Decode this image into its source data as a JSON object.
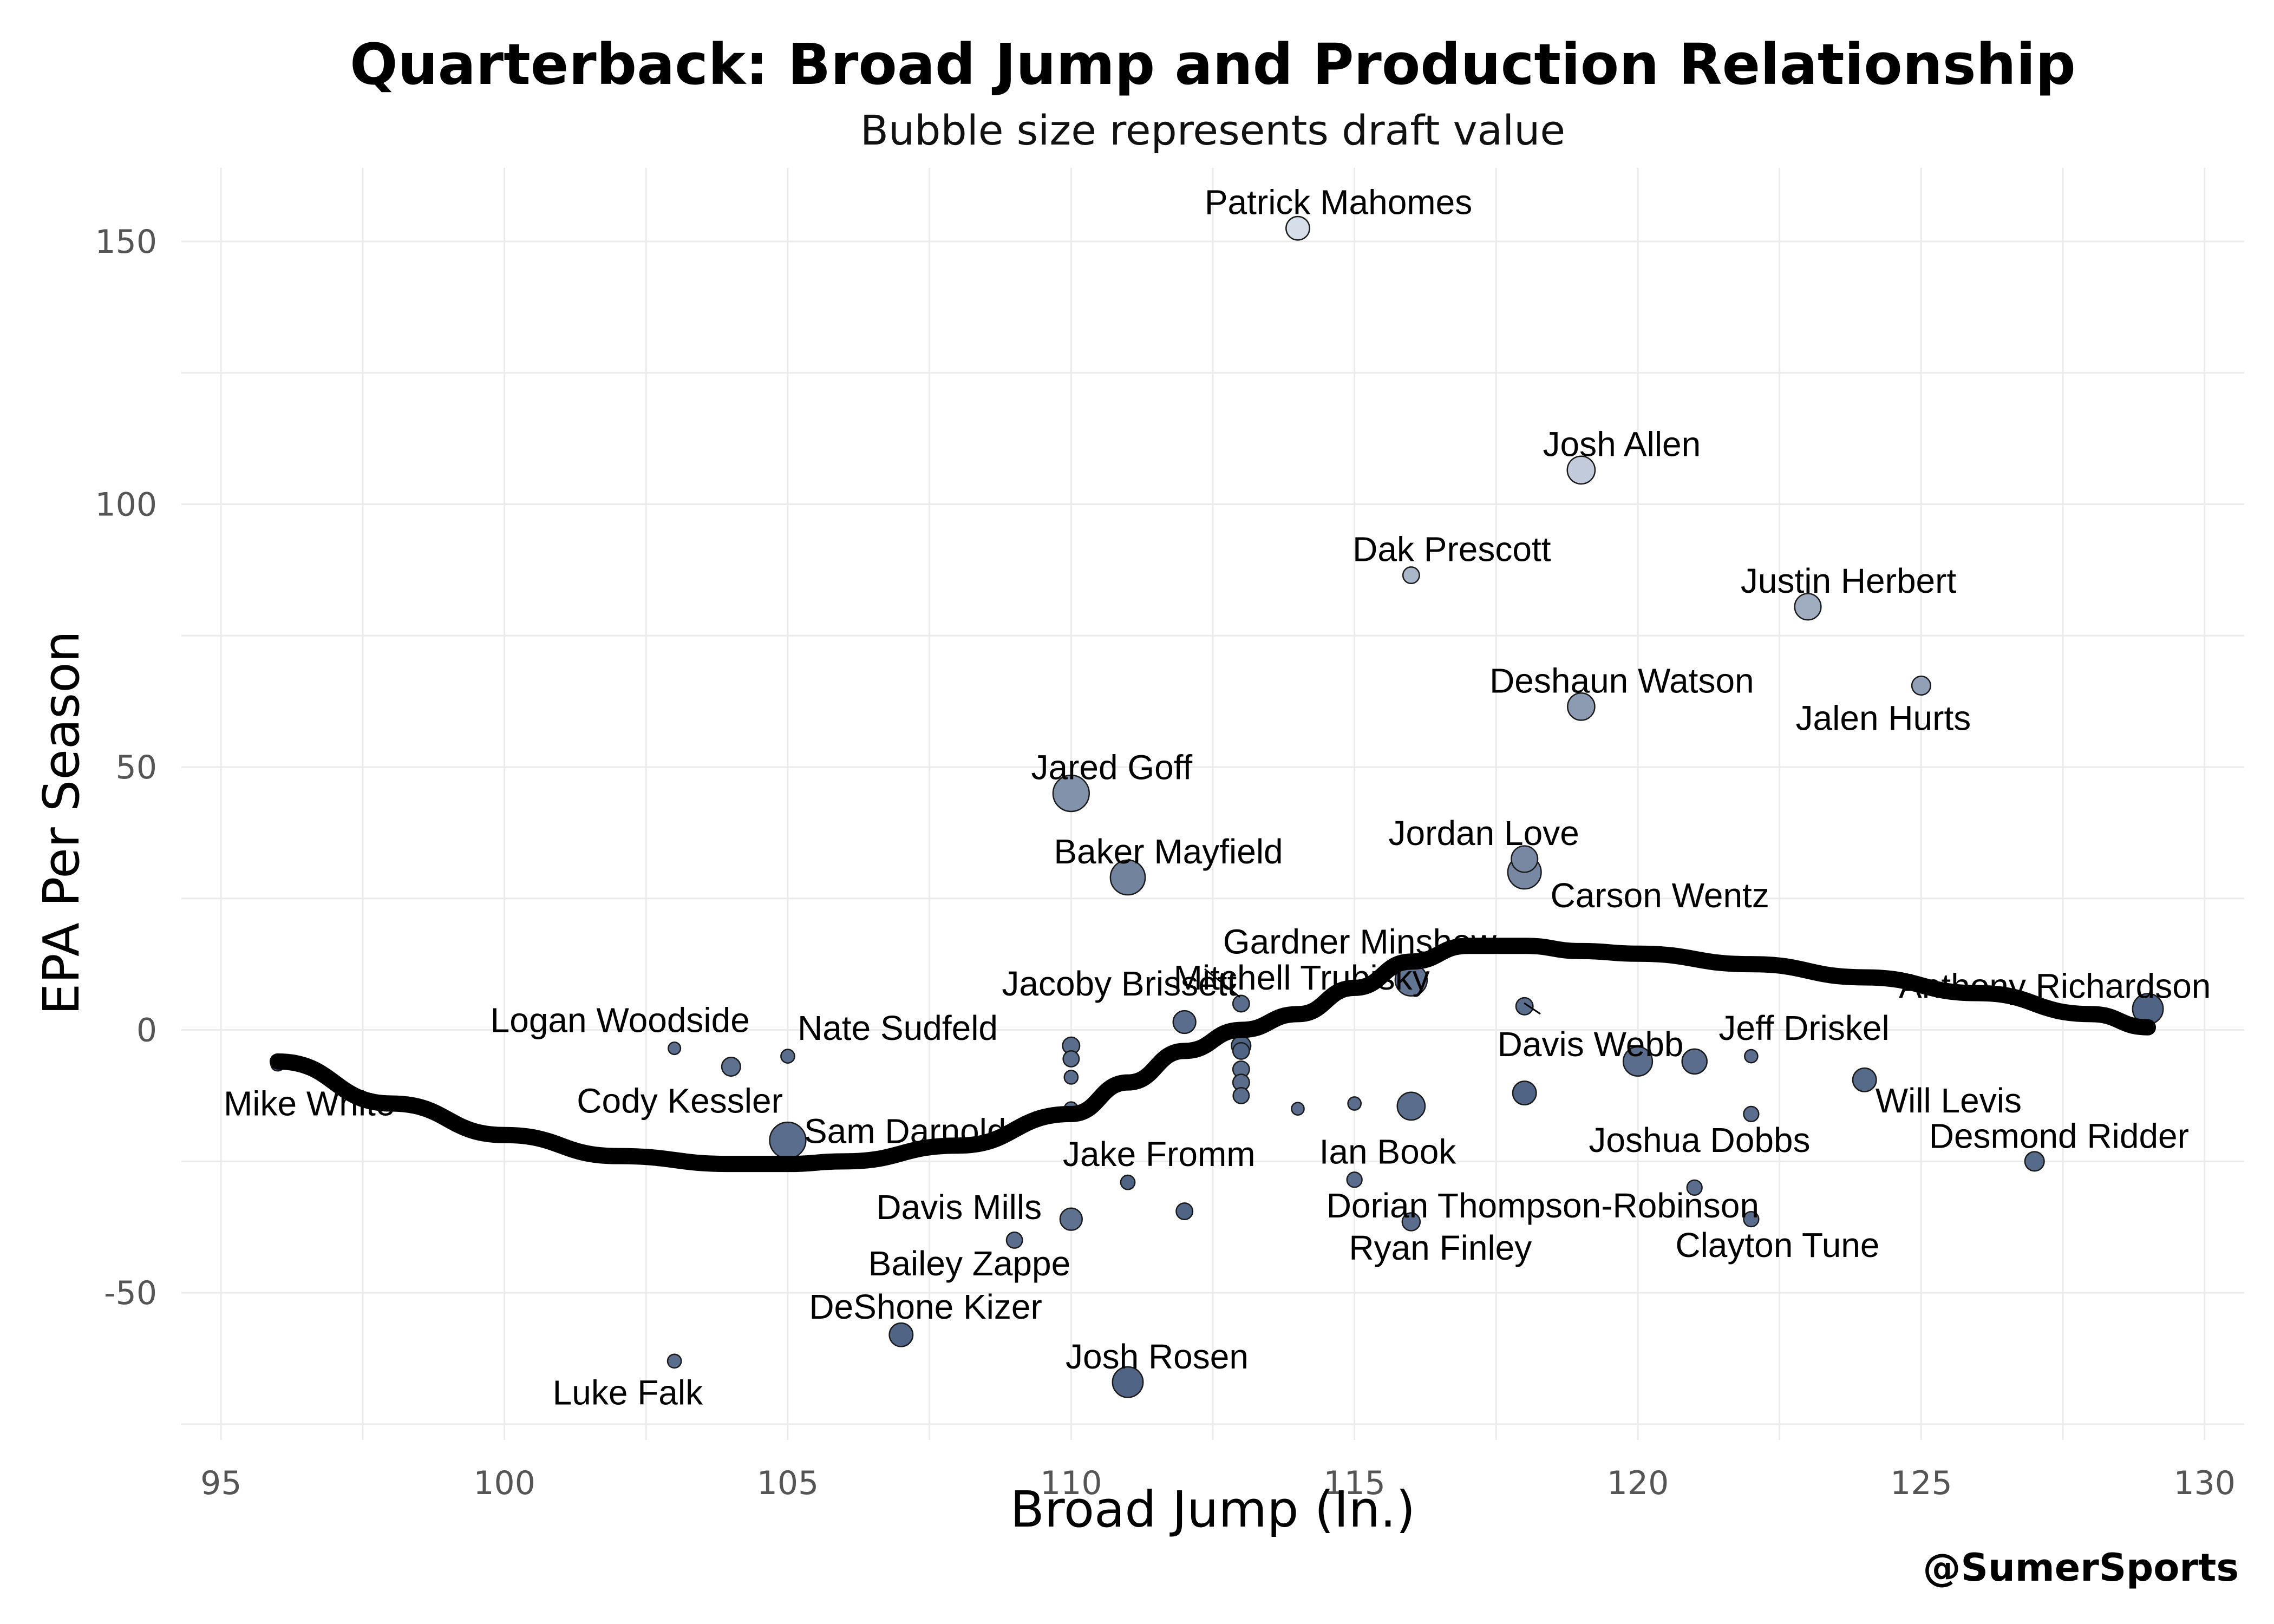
{
  "chart_data": {
    "type": "scatter",
    "title": "Quarterback: Broad Jump and Production Relationship",
    "subtitle": "Bubble size represents draft value",
    "xlabel": "Broad Jump (In.)",
    "ylabel": "EPA Per Season",
    "xlim": [
      94.3,
      130.7
    ],
    "ylim": [
      -78,
      164
    ],
    "xticks": [
      95,
      100,
      105,
      110,
      115,
      120,
      125,
      130
    ],
    "yticks": [
      -50,
      0,
      50,
      100,
      150
    ],
    "xtick_labels": [
      "95",
      "100",
      "105",
      "110",
      "115",
      "120",
      "125",
      "130"
    ],
    "ytick_labels": [
      "-50",
      "0",
      "50",
      "100",
      "150"
    ],
    "grid": true,
    "caption": "@SumerSports",
    "points": [
      {
        "label": "Patrick Mahomes",
        "x": 114,
        "y": 152.5,
        "size": 0.45,
        "shade": 0.92
      },
      {
        "label": "Josh Allen",
        "x": 119,
        "y": 106.5,
        "size": 0.6,
        "shade": 0.82
      },
      {
        "label": "Dak Prescott",
        "x": 116,
        "y": 86.5,
        "size": 0.2,
        "shade": 0.7
      },
      {
        "label": "Justin Herbert",
        "x": 123,
        "y": 80.5,
        "size": 0.55,
        "shade": 0.65
      },
      {
        "label": "Jalen Hurts",
        "x": 125,
        "y": 65.5,
        "size": 0.28,
        "shade": 0.58
      },
      {
        "label": "Deshaun Watson",
        "x": 119,
        "y": 61.5,
        "size": 0.58,
        "shade": 0.55
      },
      {
        "label": "Jared Goff",
        "x": 110,
        "y": 45,
        "size": 0.9,
        "shade": 0.5
      },
      {
        "label": "Jordan Love",
        "x": 118,
        "y": 32.5,
        "size": 0.55,
        "shade": 0.45
      },
      {
        "label": "Carson Wentz",
        "x": 118,
        "y": 30,
        "size": 0.8,
        "shade": 0.45
      },
      {
        "label": "Baker Mayfield",
        "x": 111,
        "y": 29,
        "size": 0.85,
        "shade": 0.42
      },
      {
        "label": "Gardner Minshew",
        "x": 116,
        "y": 13,
        "size": 0.12,
        "shade": 0.3
      },
      {
        "label": "",
        "x": 116,
        "y": 9.5,
        "size": 0.75,
        "shade": 0.34
      },
      {
        "label": "Jacoby Brissett",
        "x": 113,
        "y": 5,
        "size": 0.2,
        "shade": 0.3
      },
      {
        "label": "Mitchell Trubisky",
        "x": 112,
        "y": 1.5,
        "size": 0.42,
        "shade": 0.3
      },
      {
        "label": "Anthony Richardson",
        "x": 129,
        "y": 4,
        "size": 0.7,
        "shade": 0.25
      },
      {
        "label": "Davis Webb",
        "x": 118,
        "y": 4.5,
        "size": 0.22,
        "shade": 0.3
      },
      {
        "label": "Logan Woodside",
        "x": 103,
        "y": -3.5,
        "size": 0.05,
        "shade": 0.3
      },
      {
        "label": "Nate Sudfeld",
        "x": 105,
        "y": -5,
        "size": 0.1,
        "shade": 0.3
      },
      {
        "label": "Mike White",
        "x": 96,
        "y": -6.5,
        "size": 0.1,
        "shade": 0.3
      },
      {
        "label": "Cody Kessler",
        "x": 104,
        "y": -7,
        "size": 0.28,
        "shade": 0.32
      },
      {
        "label": "",
        "x": 110,
        "y": -3,
        "size": 0.22,
        "shade": 0.3
      },
      {
        "label": "",
        "x": 110,
        "y": -5.5,
        "size": 0.18,
        "shade": 0.3
      },
      {
        "label": "",
        "x": 110,
        "y": -9,
        "size": 0.1,
        "shade": 0.3
      },
      {
        "label": "",
        "x": 113,
        "y": -3,
        "size": 0.3,
        "shade": 0.25
      },
      {
        "label": "",
        "x": 113,
        "y": -4,
        "size": 0.2,
        "shade": 0.25
      },
      {
        "label": "",
        "x": 113,
        "y": -7.5,
        "size": 0.2,
        "shade": 0.3
      },
      {
        "label": "",
        "x": 113,
        "y": -10,
        "size": 0.2,
        "shade": 0.3
      },
      {
        "label": "",
        "x": 113,
        "y": -12.5,
        "size": 0.18,
        "shade": 0.3
      },
      {
        "label": "Jeff Driskel",
        "x": 122,
        "y": -5,
        "size": 0.08,
        "shade": 0.3
      },
      {
        "label": "",
        "x": 120,
        "y": -6,
        "size": 0.65,
        "shade": 0.3
      },
      {
        "label": "",
        "x": 121,
        "y": -6,
        "size": 0.5,
        "shade": 0.3
      },
      {
        "label": "Will Levis",
        "x": 124,
        "y": -9.5,
        "size": 0.45,
        "shade": 0.28
      },
      {
        "label": "",
        "x": 118,
        "y": -12,
        "size": 0.45,
        "shade": 0.25
      },
      {
        "label": "",
        "x": 116,
        "y": -14.5,
        "size": 0.6,
        "shade": 0.3
      },
      {
        "label": "",
        "x": 114,
        "y": -15,
        "size": 0.06,
        "shade": 0.3
      },
      {
        "label": "",
        "x": 115,
        "y": -14,
        "size": 0.08,
        "shade": 0.3
      },
      {
        "label": "",
        "x": 110,
        "y": -15,
        "size": 0.1,
        "shade": 0.3
      },
      {
        "label": "Joshua Dobbs",
        "x": 122,
        "y": -16,
        "size": 0.15,
        "shade": 0.3
      },
      {
        "label": "Sam Darnold",
        "x": 105,
        "y": -21,
        "size": 0.9,
        "shade": 0.3
      },
      {
        "label": "Desmond Ridder",
        "x": 127,
        "y": -25,
        "size": 0.3,
        "shade": 0.28
      },
      {
        "label": "Ian Book",
        "x": 115,
        "y": -28.5,
        "size": 0.15,
        "shade": 0.3
      },
      {
        "label": "Jake Fromm",
        "x": 111,
        "y": -29,
        "size": 0.12,
        "shade": 0.25
      },
      {
        "label": "Dorian Thompson-Robinson",
        "x": 121,
        "y": -30,
        "size": 0.15,
        "shade": 0.3
      },
      {
        "label": "",
        "x": 112,
        "y": -34.5,
        "size": 0.2,
        "shade": 0.25
      },
      {
        "label": "Davis Mills",
        "x": 110,
        "y": -36,
        "size": 0.4,
        "shade": 0.32
      },
      {
        "label": "Ryan Finley",
        "x": 116,
        "y": -36.5,
        "size": 0.25,
        "shade": 0.3
      },
      {
        "label": "Clayton Tune",
        "x": 122,
        "y": -36,
        "size": 0.15,
        "shade": 0.3
      },
      {
        "label": "Bailey Zappe",
        "x": 109,
        "y": -40,
        "size": 0.18,
        "shade": 0.3
      },
      {
        "label": "DeShone Kizer",
        "x": 107,
        "y": -58,
        "size": 0.45,
        "shade": 0.25
      },
      {
        "label": "Luke Falk",
        "x": 103,
        "y": -63,
        "size": 0.1,
        "shade": 0.3
      },
      {
        "label": "Josh Rosen",
        "x": 111,
        "y": -67,
        "size": 0.7,
        "shade": 0.25
      }
    ],
    "trend_line": {
      "x": [
        96,
        98,
        100,
        102,
        104,
        105,
        106,
        108,
        110,
        111,
        112,
        113,
        114,
        115,
        116,
        117,
        118,
        119,
        120,
        122,
        124,
        126,
        128,
        129
      ],
      "y": [
        -6,
        -14,
        -20,
        -24,
        -25.5,
        -25.5,
        -25,
        -22,
        -16,
        -10,
        -4,
        0,
        3,
        8,
        13,
        16,
        16,
        15,
        14.5,
        12.5,
        10,
        7,
        3,
        0.5
      ]
    }
  }
}
